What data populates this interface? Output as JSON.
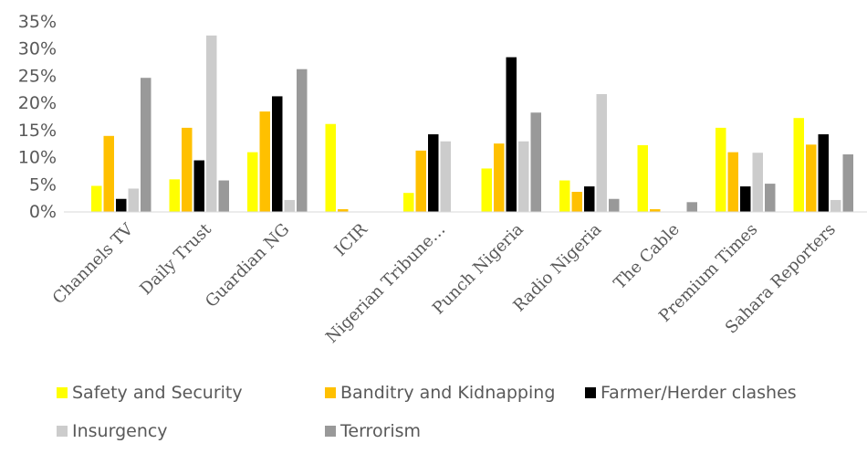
{
  "chart_data": {
    "type": "bar",
    "categories": [
      "Channels TV",
      "Daily Trust",
      "Guardian NG",
      "ICIR",
      "Nigerian Tribune…",
      "Punch Nigeria",
      "Radio Nigeria",
      "The Cable",
      "Premium Times",
      "Sahara Reporters"
    ],
    "series": [
      {
        "name": "Safety and Security",
        "color": "#ffff00",
        "values": [
          4.8,
          6.0,
          11.0,
          16.2,
          3.5,
          8.0,
          5.8,
          12.3,
          15.5,
          17.3
        ]
      },
      {
        "name": "Banditry and Kidnapping",
        "color": "#ffc000",
        "values": [
          14.0,
          15.5,
          18.5,
          0.5,
          11.3,
          12.6,
          3.7,
          0.5,
          11.0,
          12.4
        ]
      },
      {
        "name": "Farmer/Herder clashes",
        "color": "#000000",
        "values": [
          2.4,
          9.5,
          21.3,
          0,
          14.3,
          28.5,
          4.7,
          0,
          4.7,
          14.3
        ]
      },
      {
        "name": "Insurgency",
        "color": "#cccccc",
        "values": [
          4.3,
          32.5,
          2.2,
          0,
          13.0,
          13.0,
          21.7,
          0,
          10.9,
          2.2
        ]
      },
      {
        "name": "Terrorism",
        "color": "#999999",
        "values": [
          24.7,
          5.8,
          26.3,
          0,
          0,
          18.3,
          2.4,
          1.8,
          5.2,
          10.6
        ]
      }
    ],
    "ylim": [
      0,
      35
    ],
    "yticks": [
      "0%",
      "5%",
      "10%",
      "15%",
      "20%",
      "25%",
      "30%",
      "35%"
    ],
    "grid": false,
    "legend_position": "bottom"
  }
}
